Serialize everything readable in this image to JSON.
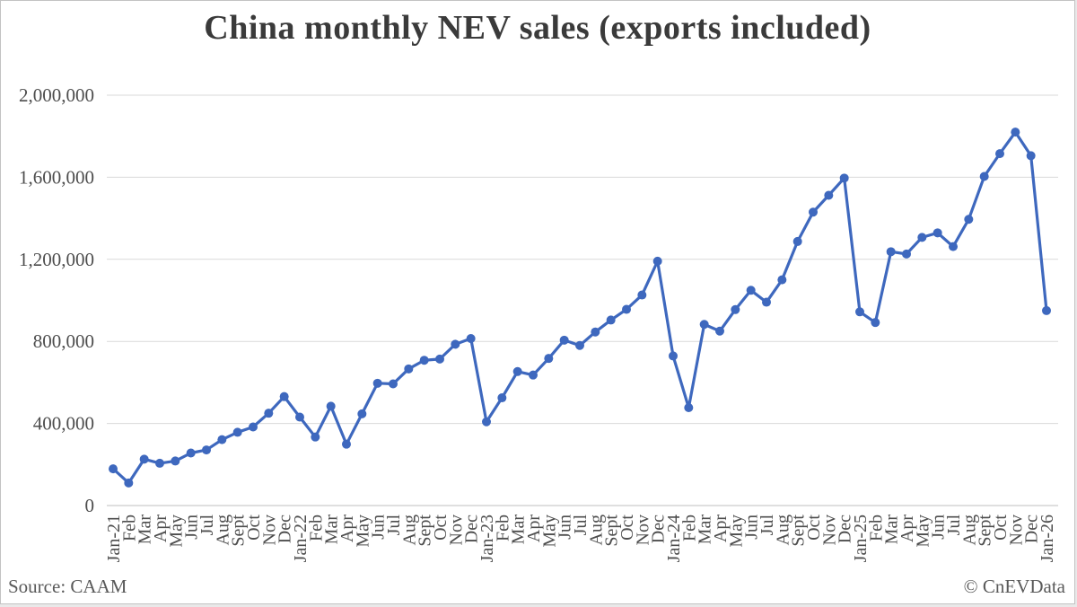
{
  "chart_data": {
    "type": "line",
    "title": "China monthly NEV sales (exports included)",
    "xlabel": "",
    "ylabel": "",
    "ylim": [
      0,
      2000000
    ],
    "yticks": [
      0,
      400000,
      800000,
      1200000,
      1600000,
      2000000
    ],
    "ytick_labels": [
      "0",
      "400,000",
      "800,000",
      "1,200,000",
      "1,600,000",
      "2,000,000"
    ],
    "grid": "horizontal",
    "legend": "none",
    "x_labels": [
      "Jan-21",
      "Feb",
      "Mar",
      "Apr",
      "May",
      "Jun",
      "Jul",
      "Aug",
      "Sept",
      "Oct",
      "Nov",
      "Dec",
      "Jan-22",
      "Feb",
      "Mar",
      "Apr",
      "May",
      "Jun",
      "Jul",
      "Aug",
      "Sept",
      "Oct",
      "Nov",
      "Dec",
      "Jan-23",
      "Feb",
      "Mar",
      "Apr",
      "May",
      "Jun",
      "Jul",
      "Aug",
      "Sept",
      "Oct",
      "Nov",
      "Dec",
      "Jan-24",
      "Feb",
      "Mar",
      "Apr",
      "May",
      "Jun",
      "Jul",
      "Aug",
      "Sept",
      "Oct",
      "Nov",
      "Dec",
      "Jan-25",
      "Feb",
      "Mar",
      "Apr",
      "May",
      "Jun",
      "Jul",
      "Aug",
      "Sept",
      "Oct",
      "Nov",
      "Dec",
      "Jan-26"
    ],
    "values": [
      179000,
      110000,
      226000,
      206000,
      217000,
      256000,
      271000,
      321000,
      357000,
      383000,
      450000,
      531000,
      431000,
      334000,
      484000,
      299000,
      447000,
      596000,
      593000,
      666000,
      708000,
      714000,
      786000,
      814000,
      408000,
      525000,
      653000,
      636000,
      717000,
      806000,
      780000,
      846000,
      904000,
      956000,
      1026000,
      1191000,
      729000,
      477000,
      883000,
      850000,
      955000,
      1049000,
      991000,
      1100000,
      1287000,
      1430000,
      1512000,
      1596000,
      944000,
      892000,
      1237000,
      1226000,
      1307000,
      1329000,
      1262000,
      1395000,
      1604000,
      1715000,
      1820000,
      1705000,
      950000
    ],
    "colors": {
      "line": "#3e68be",
      "marker": "#3e68be",
      "grid": "#d9d9d9",
      "zero_axis": "#bfbfbf",
      "title_text": "#3a3a3a",
      "axis_text": "#4d4d4d"
    }
  },
  "footer": {
    "source": "Source: CAAM",
    "credit": "© CnEVData"
  }
}
